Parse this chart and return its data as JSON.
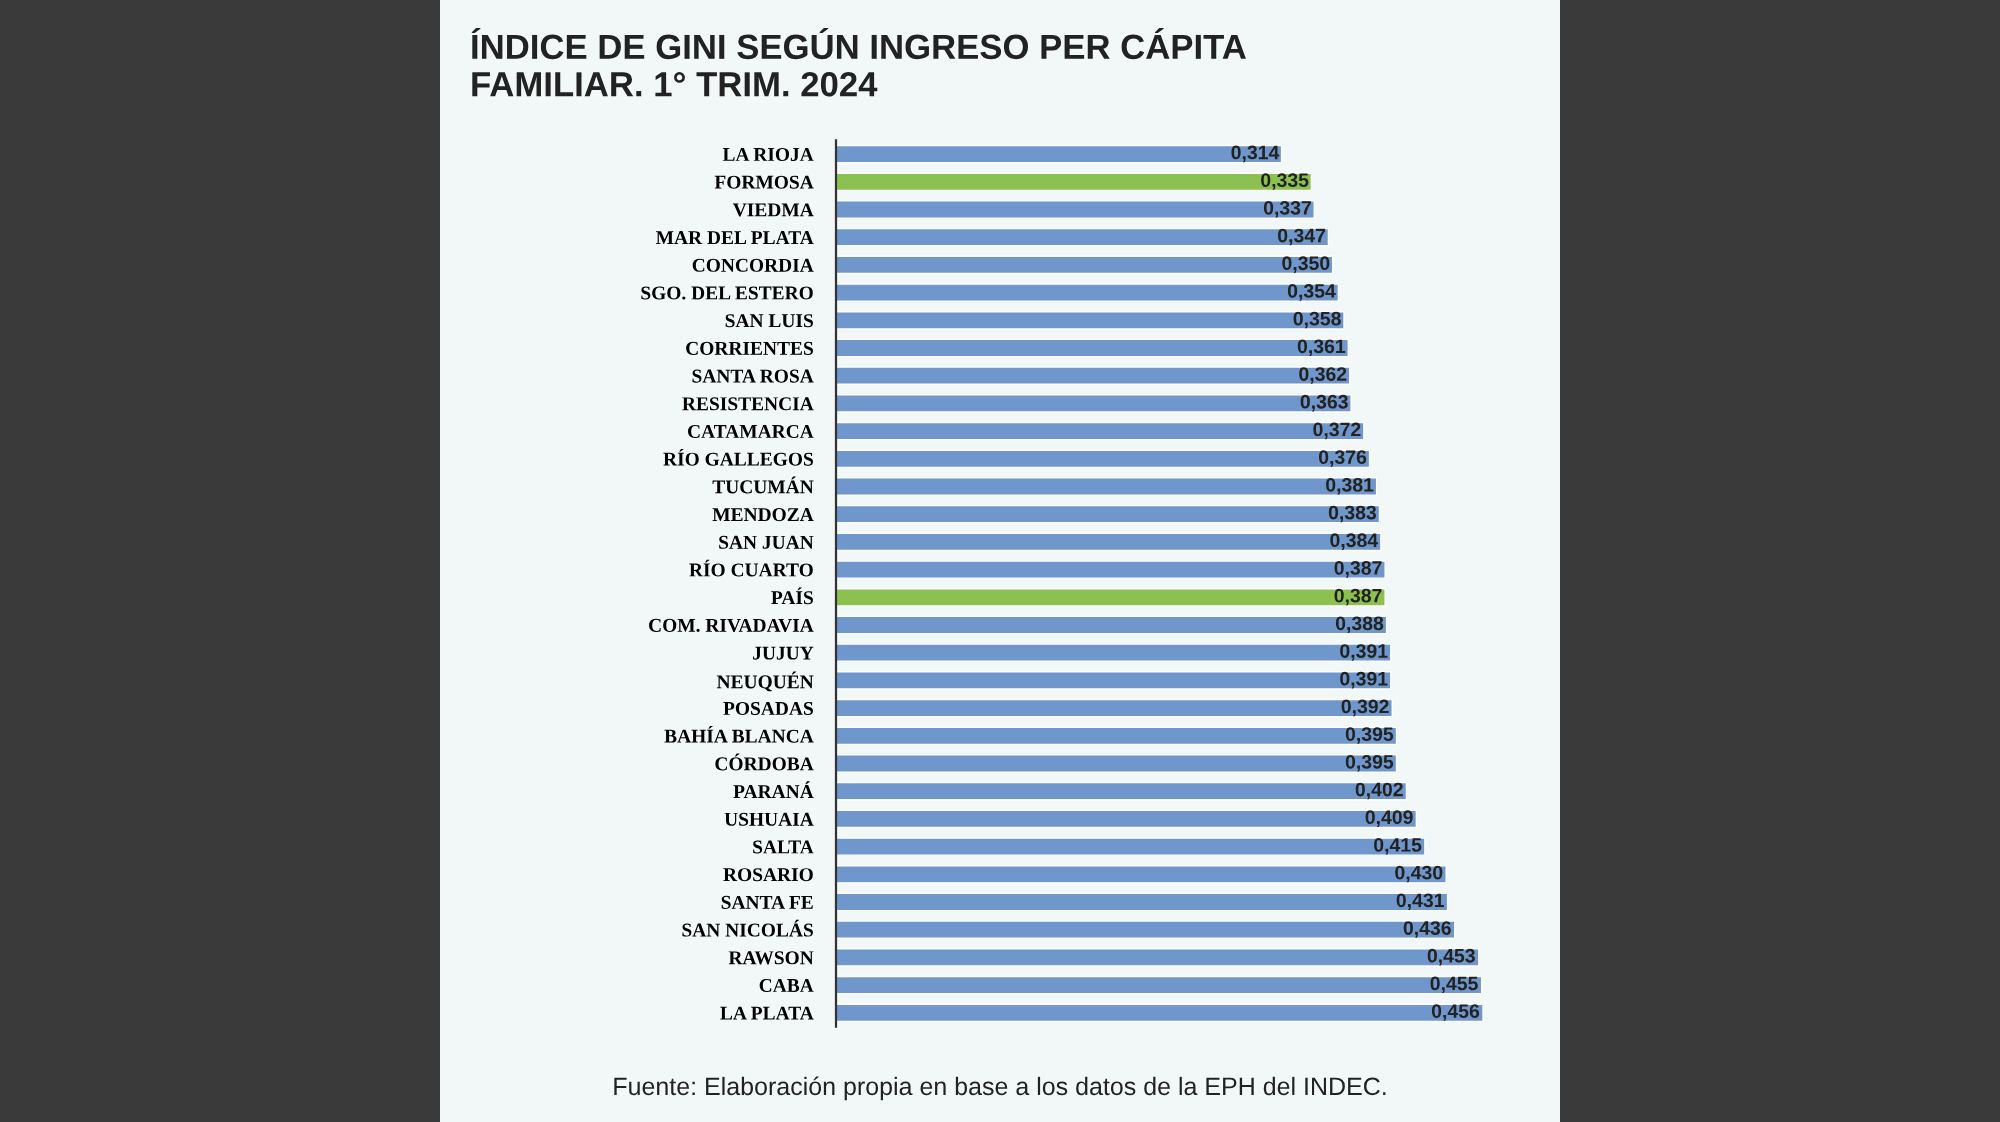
{
  "chart_data": {
    "type": "bar",
    "orientation": "horizontal",
    "title": "ÍNDICE DE GINI SEGÚN INGRESO PER CÁPITA\nFAMILIAR. 1° TRIM. 2024",
    "categories": [
      "LA RIOJA",
      "FORMOSA",
      "VIEDMA",
      "MAR DEL PLATA",
      "CONCORDIA",
      "SGO. DEL ESTERO",
      "SAN LUIS",
      "CORRIENTES",
      "SANTA ROSA",
      "RESISTENCIA",
      "CATAMARCA",
      "RÍO GALLEGOS",
      "TUCUMÁN",
      "MENDOZA",
      "SAN JUAN",
      "RÍO CUARTO",
      "PAÍS",
      "COM. RIVADAVIA",
      "JUJUY",
      "NEUQUÉN",
      "POSADAS",
      "BAHÍA BLANCA",
      "CÓRDOBA",
      "PARANÁ",
      "USHUAIA",
      "SALTA",
      "ROSARIO",
      "SANTA FE",
      "SAN NICOLÁS",
      "RAWSON",
      "CABA",
      "LA PLATA"
    ],
    "values": [
      0.314,
      0.335,
      0.337,
      0.347,
      0.35,
      0.354,
      0.358,
      0.361,
      0.362,
      0.363,
      0.372,
      0.376,
      0.381,
      0.383,
      0.384,
      0.387,
      0.387,
      0.388,
      0.391,
      0.391,
      0.392,
      0.395,
      0.395,
      0.402,
      0.409,
      0.415,
      0.43,
      0.431,
      0.436,
      0.453,
      0.455,
      0.456
    ],
    "value_labels": [
      "0,314",
      "0,335",
      "0,337",
      "0,347",
      "0,350",
      "0,354",
      "0,358",
      "0,361",
      "0,362",
      "0,363",
      "0,372",
      "0,376",
      "0,381",
      "0,383",
      "0,384",
      "0,387",
      "0,387",
      "0,388",
      "0,391",
      "0,391",
      "0,392",
      "0,395",
      "0,395",
      "0,402",
      "0,409",
      "0,415",
      "0,430",
      "0,431",
      "0,436",
      "0,453",
      "0,455",
      "0,456"
    ],
    "colors": [
      "#6f97cc",
      "#8cc152",
      "#6f97cc",
      "#6f97cc",
      "#6f97cc",
      "#6f97cc",
      "#6f97cc",
      "#6f97cc",
      "#6f97cc",
      "#6f97cc",
      "#6f97cc",
      "#6f97cc",
      "#6f97cc",
      "#6f97cc",
      "#6f97cc",
      "#6f97cc",
      "#8cc152",
      "#6f97cc",
      "#6f97cc",
      "#6f97cc",
      "#6f97cc",
      "#6f97cc",
      "#6f97cc",
      "#6f97cc",
      "#6f97cc",
      "#6f97cc",
      "#6f97cc",
      "#6f97cc",
      "#6f97cc",
      "#6f97cc",
      "#6f97cc",
      "#6f97cc"
    ],
    "tick_labels": "y",
    "grid": false,
    "legend": false,
    "annotations": [
      "Fuente: Elaboración propia en base a los datos de la EPH del INDEC."
    ]
  }
}
